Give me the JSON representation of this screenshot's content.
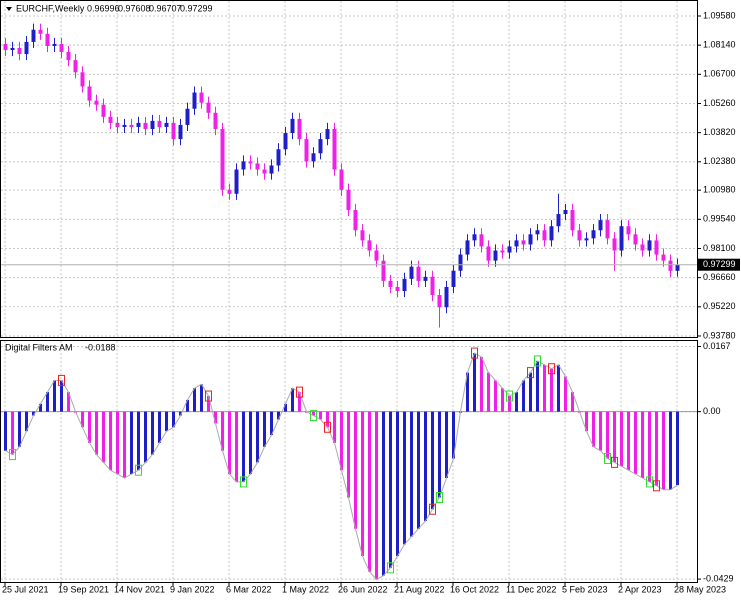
{
  "chart_data": [
    {
      "type": "candlestick",
      "symbol": "EURCHF,Weekly",
      "categories": [
        "25 Jul 2021",
        null,
        null,
        null,
        null,
        null,
        null,
        null,
        "19 Sep 2021",
        null,
        null,
        null,
        null,
        null,
        null,
        null,
        "14 Nov 2021",
        null,
        null,
        null,
        null,
        null,
        null,
        null,
        "9 Jan 2022",
        null,
        null,
        null,
        null,
        null,
        null,
        null,
        "6 Mar 2022",
        null,
        null,
        null,
        null,
        null,
        null,
        null,
        "1 May 2022",
        null,
        null,
        null,
        null,
        null,
        null,
        null,
        "26 Jun 2022",
        null,
        null,
        null,
        null,
        null,
        null,
        null,
        "21 Aug 2022",
        null,
        null,
        null,
        null,
        null,
        null,
        null,
        "16 Oct 2022",
        null,
        null,
        null,
        null,
        null,
        null,
        null,
        "11 Dec 2022",
        null,
        null,
        null,
        null,
        null,
        null,
        null,
        "5 Feb 2023",
        null,
        null,
        null,
        null,
        null,
        null,
        null,
        "2 Apr 2023",
        null,
        null,
        null,
        null,
        null,
        null,
        null,
        "28 May 2023"
      ],
      "open": [
        1.082,
        1.079,
        1.08,
        1.077,
        1.083,
        1.089,
        1.087,
        1.081,
        1.082,
        1.078,
        1.074,
        1.068,
        1.061,
        1.054,
        1.052,
        1.046,
        1.043,
        1.041,
        1.042,
        1.041,
        1.043,
        1.04,
        1.044,
        1.041,
        1.043,
        1.035,
        1.042,
        1.05,
        1.058,
        1.053,
        1.048,
        1.04,
        1.01,
        1.008,
        1.02,
        1.024,
        1.023,
        1.02,
        1.018,
        1.022,
        1.03,
        1.038,
        1.045,
        1.035,
        1.024,
        1.028,
        1.035,
        1.04,
        1.02,
        1.01,
        1.0,
        0.99,
        0.985,
        0.98,
        0.975,
        0.965,
        0.962,
        0.96,
        0.966,
        0.972,
        0.965,
        0.967,
        0.958,
        0.952,
        0.962,
        0.97,
        0.978,
        0.985,
        0.988,
        0.982,
        0.975,
        0.98,
        0.979,
        0.982,
        0.985,
        0.983,
        0.988,
        0.99,
        0.985,
        0.992,
        0.998,
        1.0,
        0.99,
        0.985,
        0.986,
        0.99,
        0.995,
        0.986,
        0.98,
        0.992,
        0.988,
        0.983,
        0.98,
        0.985,
        0.978,
        0.975,
        0.96996
      ],
      "high": [
        1.085,
        1.083,
        1.083,
        1.086,
        1.092,
        1.092,
        1.09,
        1.085,
        1.085,
        1.081,
        1.077,
        1.071,
        1.064,
        1.057,
        1.055,
        1.049,
        1.046,
        1.045,
        1.045,
        1.046,
        1.046,
        1.047,
        1.047,
        1.046,
        1.046,
        1.045,
        1.053,
        1.061,
        1.061,
        1.056,
        1.051,
        1.043,
        1.013,
        1.023,
        1.027,
        1.027,
        1.026,
        1.023,
        1.025,
        1.033,
        1.041,
        1.048,
        1.048,
        1.038,
        1.031,
        1.038,
        1.043,
        1.043,
        1.023,
        1.013,
        1.003,
        0.993,
        0.988,
        0.983,
        0.978,
        0.968,
        0.965,
        0.969,
        0.975,
        0.975,
        0.97,
        0.97,
        0.961,
        0.965,
        0.973,
        0.981,
        0.988,
        0.991,
        0.991,
        0.985,
        0.983,
        0.983,
        0.985,
        0.988,
        0.988,
        0.991,
        0.993,
        0.993,
        0.995,
        1.008,
        1.003,
        1.003,
        0.993,
        0.989,
        0.993,
        0.998,
        0.998,
        0.989,
        0.995,
        0.995,
        0.991,
        0.986,
        0.988,
        0.988,
        0.981,
        0.978,
        0.97608
      ],
      "low": [
        1.076,
        1.076,
        1.074,
        1.074,
        1.08,
        1.084,
        1.078,
        1.078,
        1.075,
        1.071,
        1.065,
        1.058,
        1.051,
        1.049,
        1.043,
        1.04,
        1.038,
        1.038,
        1.038,
        1.038,
        1.037,
        1.037,
        1.038,
        1.038,
        1.032,
        1.032,
        1.039,
        1.047,
        1.05,
        1.045,
        1.037,
        1.007,
        1.005,
        1.005,
        1.017,
        1.02,
        1.017,
        1.015,
        1.015,
        1.019,
        1.027,
        1.035,
        1.032,
        1.021,
        1.021,
        1.025,
        1.032,
        1.017,
        1.007,
        0.997,
        0.987,
        0.982,
        0.977,
        0.972,
        0.962,
        0.959,
        0.957,
        0.957,
        0.963,
        0.962,
        0.962,
        0.955,
        0.942,
        0.949,
        0.959,
        0.967,
        0.975,
        0.982,
        0.979,
        0.972,
        0.972,
        0.976,
        0.976,
        0.979,
        0.98,
        0.98,
        0.985,
        0.982,
        0.982,
        0.989,
        0.995,
        0.987,
        0.982,
        0.982,
        0.983,
        0.987,
        0.983,
        0.97,
        0.977,
        0.985,
        0.98,
        0.977,
        0.977,
        0.975,
        0.972,
        0.967,
        0.96707
      ],
      "close": [
        1.079,
        1.08,
        1.077,
        1.083,
        1.089,
        1.087,
        1.081,
        1.082,
        1.078,
        1.074,
        1.068,
        1.061,
        1.054,
        1.052,
        1.046,
        1.043,
        1.041,
        1.042,
        1.041,
        1.043,
        1.04,
        1.044,
        1.041,
        1.043,
        1.035,
        1.042,
        1.05,
        1.058,
        1.053,
        1.048,
        1.04,
        1.01,
        1.008,
        1.02,
        1.024,
        1.023,
        1.02,
        1.018,
        1.022,
        1.03,
        1.038,
        1.045,
        1.035,
        1.024,
        1.028,
        1.035,
        1.04,
        1.02,
        1.01,
        1.0,
        0.99,
        0.985,
        0.98,
        0.975,
        0.965,
        0.962,
        0.96,
        0.966,
        0.972,
        0.965,
        0.967,
        0.958,
        0.952,
        0.962,
        0.97,
        0.978,
        0.985,
        0.988,
        0.982,
        0.975,
        0.98,
        0.979,
        0.982,
        0.985,
        0.983,
        0.988,
        0.99,
        0.985,
        0.992,
        0.998,
        1.0,
        0.99,
        0.985,
        0.986,
        0.99,
        0.995,
        0.986,
        0.98,
        0.992,
        0.988,
        0.983,
        0.98,
        0.985,
        0.978,
        0.975,
        0.96996,
        0.97299
      ],
      "up_color": "#1f1fc8",
      "down_color": "#f020e8",
      "ylim": [
        0.9368,
        1.1032
      ],
      "yticks": [
        {
          "value": 1.0958,
          "label": "1.09580"
        },
        {
          "value": 1.0814,
          "label": "1.08140"
        },
        {
          "value": 1.067,
          "label": "1.06700"
        },
        {
          "value": 1.0526,
          "label": "1.05260"
        },
        {
          "value": 1.0382,
          "label": "1.03820"
        },
        {
          "value": 1.0238,
          "label": "1.02380"
        },
        {
          "value": 1.0098,
          "label": "1.00980"
        },
        {
          "value": 0.9954,
          "label": "0.99540"
        },
        {
          "value": 0.981,
          "label": "0.98100"
        },
        {
          "value": 0.9666,
          "label": "0.96660"
        },
        {
          "value": 0.9522,
          "label": "0.95220"
        },
        {
          "value": 0.9378,
          "label": "0.93780"
        }
      ],
      "grid": true
    },
    {
      "type": "bar",
      "title": "Digital Filters AM",
      "values": [
        -0.01,
        -0.011,
        -0.009,
        -0.005,
        -0.001,
        0.002,
        0.005,
        0.008,
        0.008,
        0.005,
        0.0,
        -0.004,
        -0.008,
        -0.011,
        -0.013,
        -0.015,
        -0.016,
        -0.017,
        -0.016,
        -0.015,
        -0.013,
        -0.011,
        -0.008,
        -0.005,
        -0.004,
        -0.001,
        0.003,
        0.006,
        0.007,
        0.004,
        -0.003,
        -0.01,
        -0.016,
        -0.018,
        -0.018,
        -0.016,
        -0.013,
        -0.009,
        -0.006,
        -0.002,
        0.002,
        0.006,
        0.005,
        0.0,
        -0.001,
        -0.002,
        -0.004,
        -0.008,
        -0.015,
        -0.022,
        -0.03,
        -0.037,
        -0.041,
        -0.043,
        -0.042,
        -0.04,
        -0.037,
        -0.034,
        -0.032,
        -0.03,
        -0.028,
        -0.025,
        -0.022,
        -0.017,
        -0.012,
        0.0,
        0.01,
        0.015,
        0.014,
        0.01,
        0.008,
        0.006,
        0.004,
        0.005,
        0.008,
        0.01,
        0.013,
        0.012,
        0.011,
        0.012,
        0.009,
        0.005,
        0.0,
        -0.005,
        -0.009,
        -0.01,
        -0.012,
        -0.013,
        -0.014,
        -0.015,
        -0.016,
        -0.017,
        -0.018,
        -0.019,
        -0.02,
        -0.02,
        -0.0188
      ],
      "up_color": "#1f1fc8",
      "down_color": "#f020e8",
      "buy_signals": [
        1,
        19,
        34,
        44,
        55,
        62,
        72,
        76,
        86,
        92
      ],
      "buy_color": "#33dd33",
      "sell_signals": [
        8,
        29,
        42,
        46,
        61,
        67,
        75,
        78,
        87,
        93
      ],
      "sell_color": "#ee2222",
      "ylim": [
        -0.0439,
        0.0181
      ],
      "yticks": [
        0.0167,
        {
          "value": 0,
          "label": "0.00"
        },
        -0.0429
      ],
      "grid": true
    }
  ]
}
